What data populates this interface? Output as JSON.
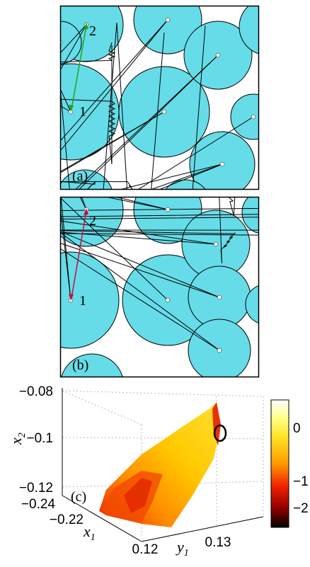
{
  "panels": [
    {
      "label": "(a)",
      "node_labels": [
        "1",
        "2"
      ]
    },
    {
      "label": "(b)",
      "node_labels": [
        "1",
        "2"
      ]
    },
    {
      "label": "(c)",
      "z_axis": {
        "symbol": "x",
        "subscript": "2",
        "ticks": [
          "−0.08",
          "−0.1",
          "−0.12"
        ]
      },
      "x_axis": {
        "symbol": "x",
        "subscript": "1",
        "ticks": [
          "−0.24",
          "−0.22"
        ]
      },
      "y_axis": {
        "symbol": "y",
        "subscript": "1",
        "ticks": [
          "0.12",
          "0.13"
        ]
      },
      "colorbar": {
        "ticks": [
          "0",
          "−1",
          "−2"
        ]
      }
    }
  ]
}
